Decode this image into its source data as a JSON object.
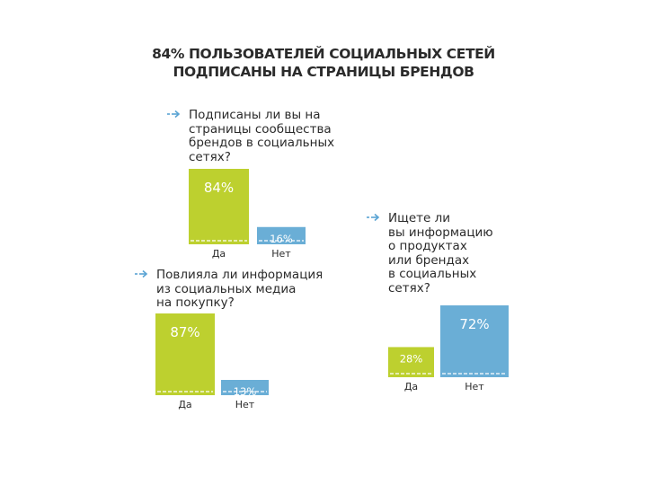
{
  "title_line1": "84% ПОЛЬЗОВАТЕЛЕЙ СОЦИАЛЬНЫХ СЕТЕЙ",
  "title_line2": "ПОДПИСАНЫ НА СТРАНИЦЫ БРЕНДОВ",
  "colors": {
    "green": "#bdd02f",
    "blue": "#6aaed6",
    "arrow": "#5aa4d4",
    "dash": "#ffffff"
  },
  "questions": {
    "q1": "Подписаны ли вы на\nстраницы сообщества\nбрендов в социальных\nсетях?",
    "q2": "Повлияла ли информация\nиз социальных медиа\nна покупку?",
    "q3": "Ищете ли\nвы информацию\nо продуктах\nили брендах\nв социальных\nсетях?"
  },
  "chart_data": [
    {
      "type": "bar",
      "categories": [
        "Да",
        "Нет"
      ],
      "values": [
        84,
        16
      ],
      "labels": [
        "84%",
        "16%"
      ],
      "ylim": [
        0,
        100
      ]
    },
    {
      "type": "bar",
      "categories": [
        "Да",
        "Нет"
      ],
      "values": [
        87,
        13
      ],
      "labels": [
        "87%",
        "13%"
      ],
      "ylim": [
        0,
        100
      ]
    },
    {
      "type": "bar",
      "categories": [
        "Да",
        "Нет"
      ],
      "values": [
        28,
        72
      ],
      "labels": [
        "28%",
        "72%"
      ],
      "ylim": [
        0,
        100
      ]
    }
  ]
}
